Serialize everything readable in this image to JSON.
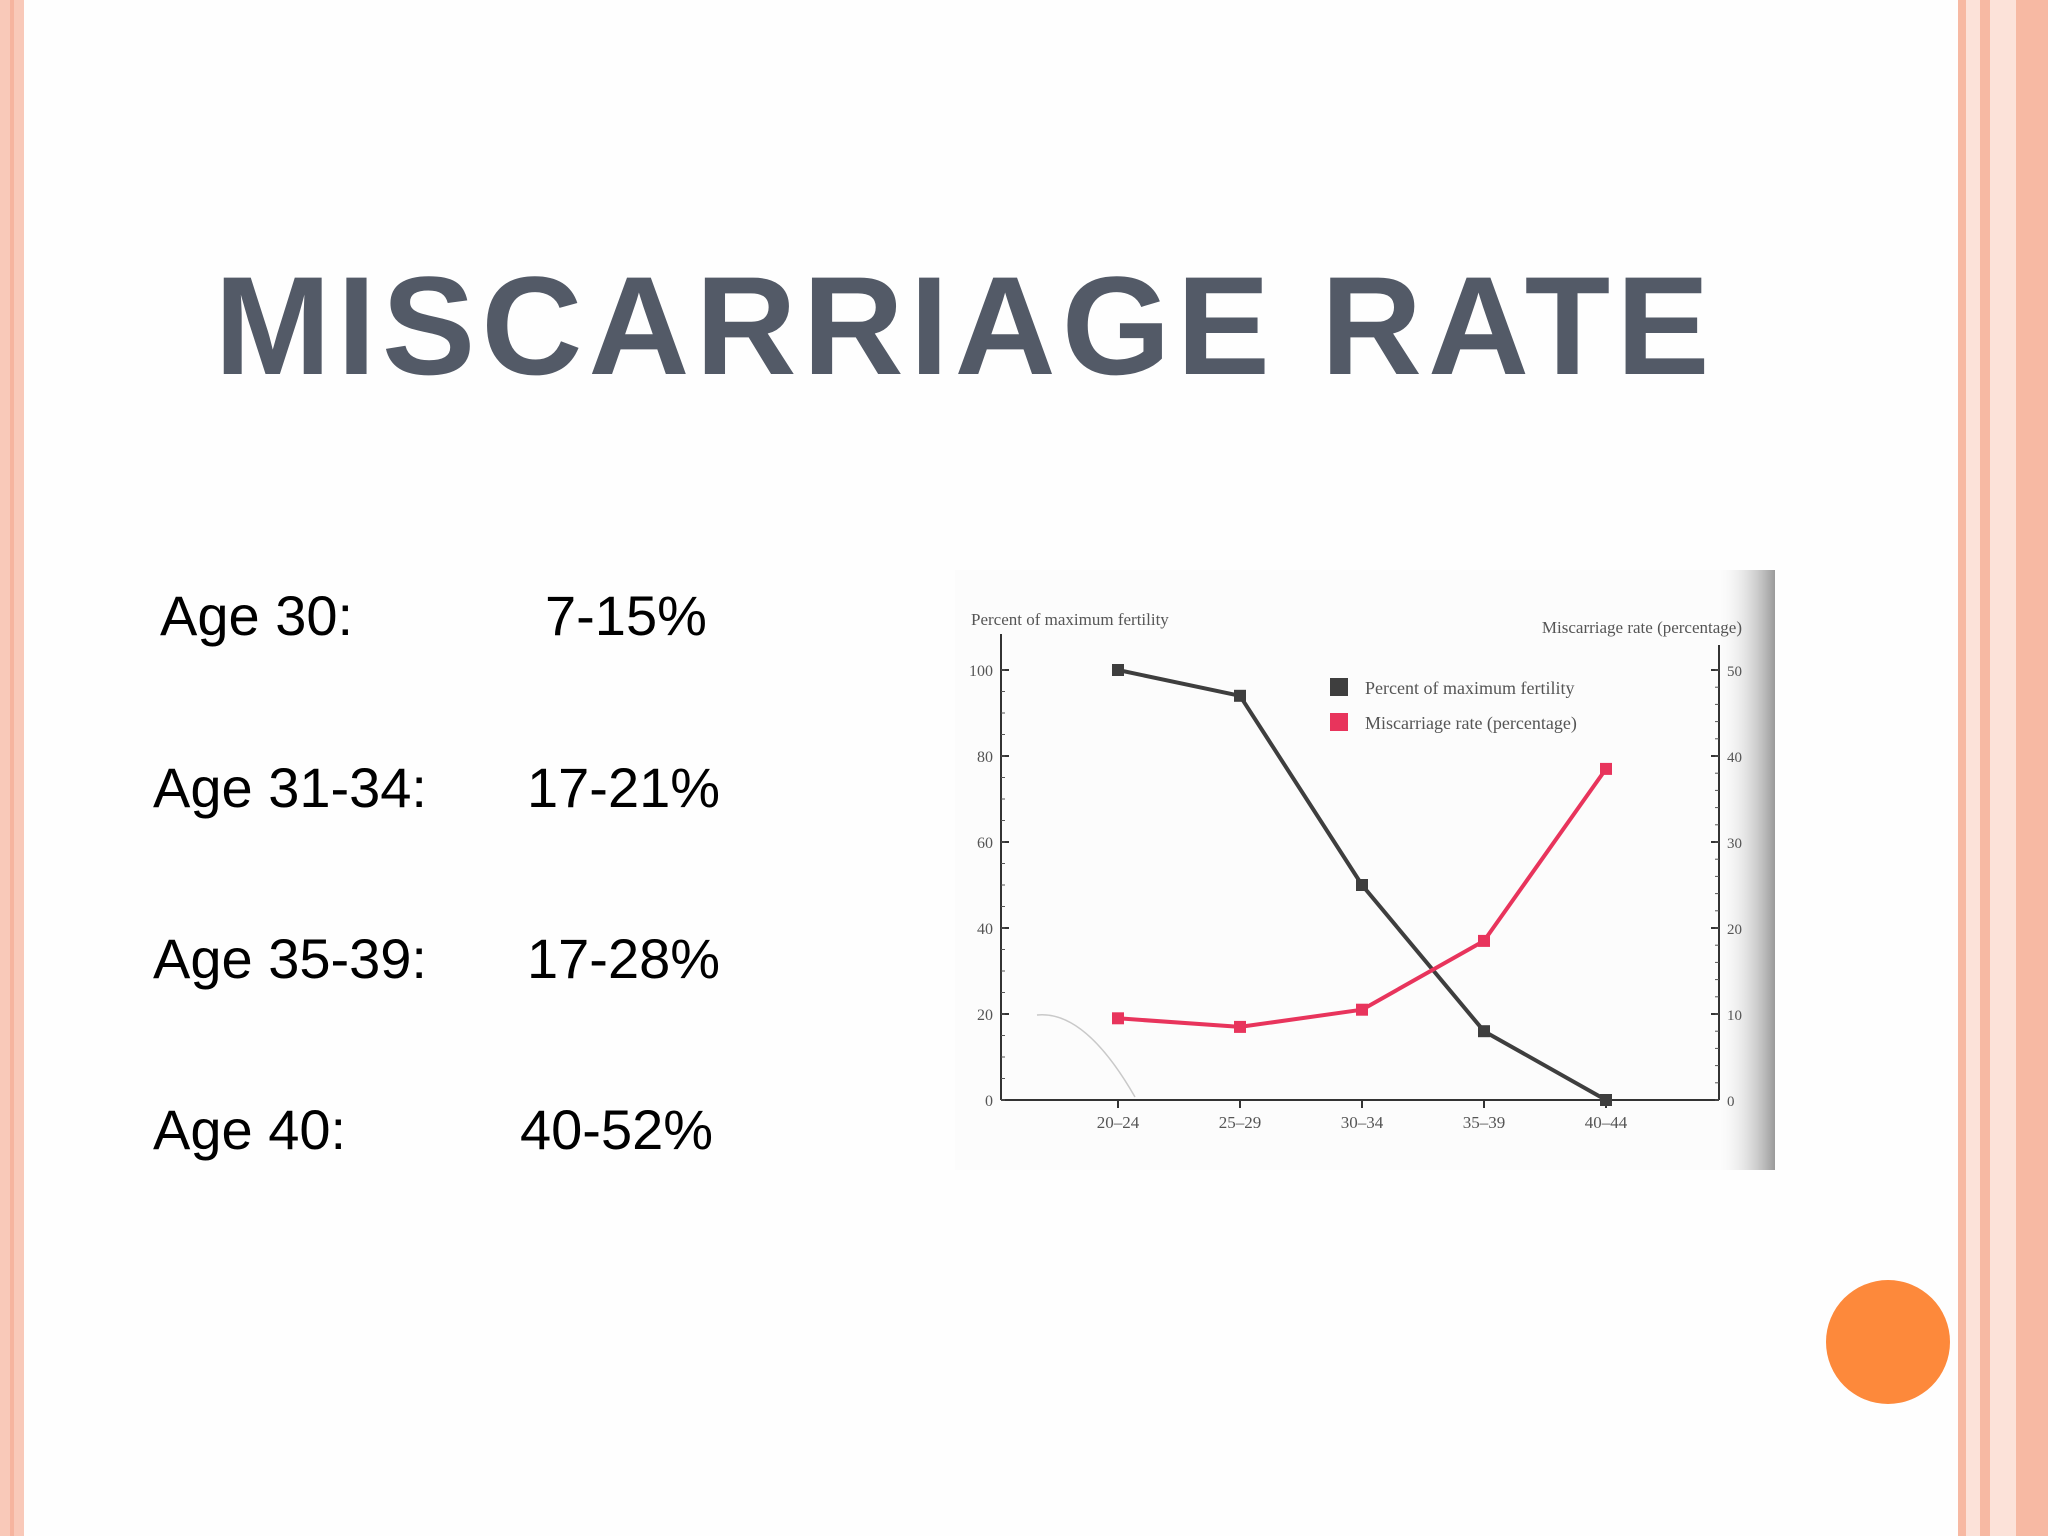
{
  "slide": {
    "title": "MISCARRIAGE RATE",
    "accent_color": "#fd893b",
    "border_color": "#f9c9b9"
  },
  "age_rates": [
    {
      "label": "Age 30:",
      "value": "7-15%"
    },
    {
      "label": "Age 31-34:",
      "value": "17-21%"
    },
    {
      "label": "Age 35-39:",
      "value": "17-28%"
    },
    {
      "label": "Age 40:",
      "value": "40-52%"
    }
  ],
  "chart_data": {
    "type": "line",
    "categories": [
      "20–24",
      "25–29",
      "30–34",
      "35–39",
      "40–44"
    ],
    "y_left_label": "Percent of maximum fertility",
    "y_right_label": "Miscarriage rate (percentage)",
    "y_left_lim": [
      0,
      100
    ],
    "y_left_ticks": [
      "0",
      "20",
      "40",
      "60",
      "80",
      "100"
    ],
    "y_right_lim": [
      0,
      50
    ],
    "y_right_ticks": [
      "0",
      "10",
      "20",
      "30",
      "40",
      "50"
    ],
    "legend_position": "top-right",
    "series": [
      {
        "name": "Percent of maximum fertility",
        "axis": "left",
        "color": "#3e3e3e",
        "values": [
          100,
          94,
          50,
          16,
          0
        ]
      },
      {
        "name": "Miscarriage rate (percentage)",
        "axis": "right",
        "color": "#e8345c",
        "values": [
          9.5,
          8.5,
          10.5,
          18.5,
          38.5
        ]
      }
    ]
  }
}
